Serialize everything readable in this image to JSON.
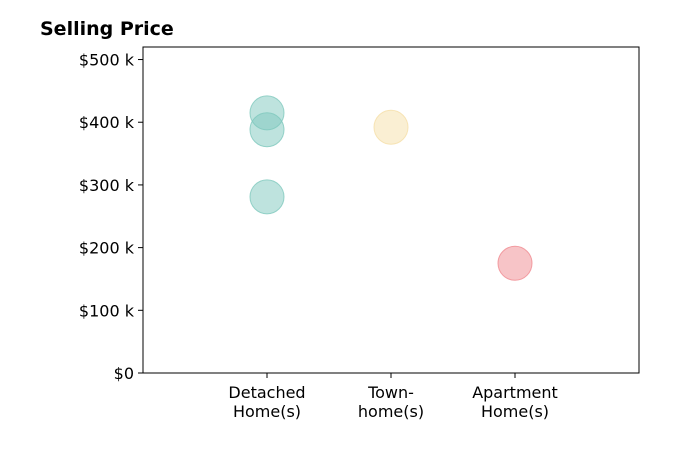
{
  "chart_data": {
    "type": "scatter",
    "title": "Selling Price",
    "xlabel": "",
    "ylabel": "",
    "categories": [
      "Detached\nHome(s)",
      "Town-\nhome(s)",
      "Apartment\nHome(s)"
    ],
    "ylim": [
      0,
      520000
    ],
    "xlim": [
      -1,
      3
    ],
    "y_ticks": [
      0,
      100000,
      200000,
      300000,
      400000,
      500000
    ],
    "y_tick_labels": [
      "$0",
      "$100 k",
      "$200 k",
      "$300 k",
      "$400 k",
      "$500 k"
    ],
    "grid": false,
    "points": [
      {
        "category": 0,
        "y": 415000,
        "color": "#7ec8bd"
      },
      {
        "category": 0,
        "y": 388000,
        "color": "#7ec8bd"
      },
      {
        "category": 0,
        "y": 281000,
        "color": "#7ec8bd"
      },
      {
        "category": 1,
        "y": 392000,
        "color": "#f5dfa8"
      },
      {
        "category": 2,
        "y": 175000,
        "color": "#f08a90"
      }
    ]
  }
}
